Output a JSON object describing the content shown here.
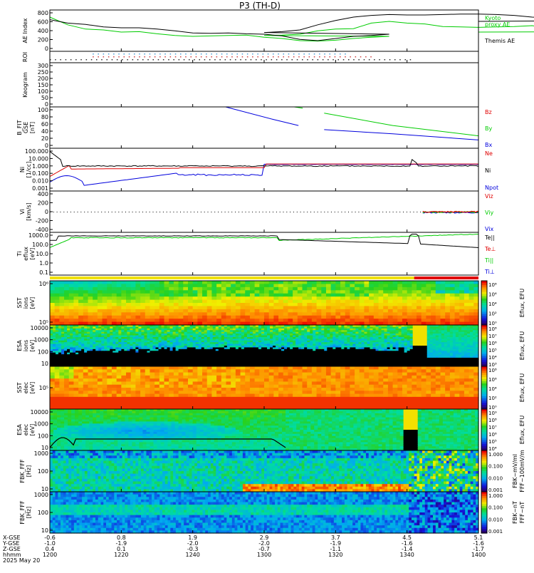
{
  "title": "P3 (TH-D)",
  "chart_data": [
    {
      "type": "line",
      "panel": "ae",
      "ylabel": "AE Index",
      "yticks": [
        "800",
        "600",
        "400",
        "200",
        "0"
      ],
      "ylim": [
        0,
        800
      ],
      "x": [
        1200,
        1205,
        1210,
        1215,
        1220,
        1225,
        1230,
        1235,
        1240,
        1245,
        1250,
        1255,
        1260,
        1265,
        1270,
        1275,
        1280,
        1285,
        1290,
        1295,
        1300,
        1305,
        1310,
        1315,
        1320,
        1325,
        1330,
        1335,
        1340,
        1345,
        1350,
        1355,
        1360,
        1365,
        1370,
        1375,
        1380,
        1385,
        1390,
        1395,
        1400
      ],
      "series": [
        {
          "name": "Kyoto proxy AE",
          "color": "#00cc00",
          "values": [
            700,
            520,
            420,
            400,
            350,
            360,
            310,
            270,
            250,
            260,
            270,
            280,
            230,
            200,
            150,
            140,
            160,
            200,
            230,
            250,
            270,
            280,
            300,
            380,
            420,
            430,
            560,
            600,
            560,
            540,
            480,
            470,
            460,
            470,
            480,
            500,
            450,
            420,
            370,
            360,
            350
          ]
        },
        {
          "name": "Themis AE",
          "color": "#000000",
          "values": [
            640,
            560,
            530,
            470,
            450,
            450,
            420,
            380,
            330,
            320,
            330,
            310,
            300,
            260,
            180,
            150,
            200,
            250,
            270,
            300,
            340,
            360,
            400,
            520,
            620,
            700,
            740,
            760,
            750,
            750,
            760,
            770,
            770,
            760,
            740,
            700,
            680,
            660,
            640,
            620,
            600
          ]
        }
      ],
      "legend": [
        "Kyoto",
        "proxy AE",
        "Themis AE"
      ]
    },
    {
      "type": "scatter",
      "panel": "roi",
      "ylabel": "ROI"
    },
    {
      "type": "heatmap",
      "panel": "keogram",
      "ylabel": "Keogram",
      "yticks": [
        "300",
        "250",
        "200",
        "150",
        "100",
        "50",
        "0"
      ]
    },
    {
      "type": "line",
      "panel": "bfit",
      "ylabel": [
        "B_FIT",
        "GSE",
        "[nT]"
      ],
      "yticks": [
        "100",
        "80",
        "60",
        "40",
        "20",
        "0"
      ],
      "ylim": [
        0,
        100
      ],
      "legend": [
        "Bz",
        "By",
        "Bx"
      ]
    },
    {
      "type": "line",
      "panel": "ni",
      "ylabel": [
        "Ni",
        "[1/cc]"
      ],
      "yticks": [
        "100.000",
        "10.000",
        "1.000",
        "0.100",
        "0.010",
        "0.001"
      ],
      "legend": [
        "Ne",
        "Ni",
        "Npot"
      ]
    },
    {
      "type": "line",
      "panel": "vi",
      "ylabel": [
        "Vi",
        "[km/s]"
      ],
      "yticks": [
        "400",
        "200",
        "0",
        "-200",
        "-400"
      ],
      "ylim": [
        -500,
        500
      ],
      "legend": [
        "Viz",
        "Viy",
        "Vix"
      ]
    },
    {
      "type": "line",
      "panel": "ti",
      "ylabel": [
        "Ti",
        "eflux",
        "[eV]"
      ],
      "yticks": [
        "1000.0",
        "100.0",
        "10.0",
        "1.0",
        "0.1"
      ],
      "legend": [
        "Te||",
        "Te⊥",
        "Ti||",
        "Ti⊥"
      ]
    },
    {
      "type": "heatmap",
      "panel": "sst-ion",
      "ylabel": [
        "SST",
        "ions",
        "[eV]"
      ],
      "yticks": [
        "10⁶",
        "10⁵"
      ],
      "colorbar_label": "Eflux, EFU",
      "colorbar_ticks": [
        "10⁸",
        "10⁶",
        "10⁴",
        "10²",
        "10⁰"
      ]
    },
    {
      "type": "heatmap",
      "panel": "esa-ion",
      "ylabel": [
        "ESA",
        "ions",
        "[eV]"
      ],
      "yticks": [
        "10000",
        "1000",
        "100",
        "10"
      ],
      "colorbar_label": "Eflux, EFU",
      "colorbar_ticks": [
        "10⁸",
        "10⁷",
        "10⁶",
        "10⁵",
        "10⁴",
        "10³"
      ]
    },
    {
      "type": "heatmap",
      "panel": "sst-elec",
      "ylabel": [
        "SST",
        "elec",
        "[eV]"
      ],
      "yticks": [
        "10⁵"
      ],
      "colorbar_label": "Eflux, EFU",
      "colorbar_ticks": [
        "10⁸",
        "10⁶",
        "10⁴",
        "10²",
        "10⁰"
      ]
    },
    {
      "type": "heatmap",
      "panel": "esa-elec",
      "ylabel": [
        "ESA",
        "elec",
        "[eV]"
      ],
      "yticks": [
        "10000",
        "1000",
        "100",
        "10"
      ],
      "colorbar_label": "Eflux, EFU",
      "colorbar_ticks": [
        "10⁹",
        "10⁸",
        "10⁷",
        "10⁶",
        "10⁵",
        "10⁴"
      ]
    },
    {
      "type": "heatmap",
      "panel": "fbk-e",
      "ylabel": [
        "FBK_FFF",
        "[Hz]"
      ],
      "yticks": [
        "1000",
        "100",
        "10"
      ],
      "colorbar_label": "FFF~100mV/m",
      "colorbar_label2": "FBK~mV/ml",
      "colorbar_ticks": [
        "1.000",
        "0.100",
        "0.010",
        "0.001"
      ]
    },
    {
      "type": "heatmap",
      "panel": "fbk-b",
      "ylabel": [
        "FBK_FFF",
        "[Hz]"
      ],
      "yticks": [
        "1000",
        "100",
        "10"
      ],
      "colorbar_label": "FFF~nT",
      "colorbar_label2": "FBK~nT",
      "colorbar_ticks": [
        "1.000",
        "0.100",
        "0.010",
        "0.001"
      ]
    }
  ],
  "xaxis": {
    "row_labels": [
      "X-GSE",
      "Y-GSE",
      "Z-GSE",
      "hhmm",
      "2025 May 20"
    ],
    "ticks": [
      {
        "x": 1200,
        "rows": [
          "-0.6",
          "-1.0",
          "0.4",
          "1200"
        ]
      },
      {
        "x": 1220,
        "rows": [
          "0.8",
          "-1.9",
          "0.1",
          "1220"
        ]
      },
      {
        "x": 1240,
        "rows": [
          "1.9",
          "-2.0",
          "-0.3",
          "1240"
        ]
      },
      {
        "x": 1300,
        "rows": [
          "2.9",
          "-2.0",
          "-0.7",
          "1300"
        ]
      },
      {
        "x": 1320,
        "rows": [
          "3.7",
          "-1.9",
          "-1.1",
          "1320"
        ]
      },
      {
        "x": 1340,
        "rows": [
          "4.5",
          "-1.6",
          "-1.4",
          "1340"
        ]
      },
      {
        "x": 1400,
        "rows": [
          "5.1",
          "-1.6",
          "-1.7",
          "1400"
        ]
      }
    ]
  },
  "colors": {
    "frame": "#000000",
    "ae_kyoto": "#00cc00",
    "ae_themis": "#000000",
    "red": "#e00000",
    "green": "#00cc00",
    "blue": "#0000dd"
  }
}
